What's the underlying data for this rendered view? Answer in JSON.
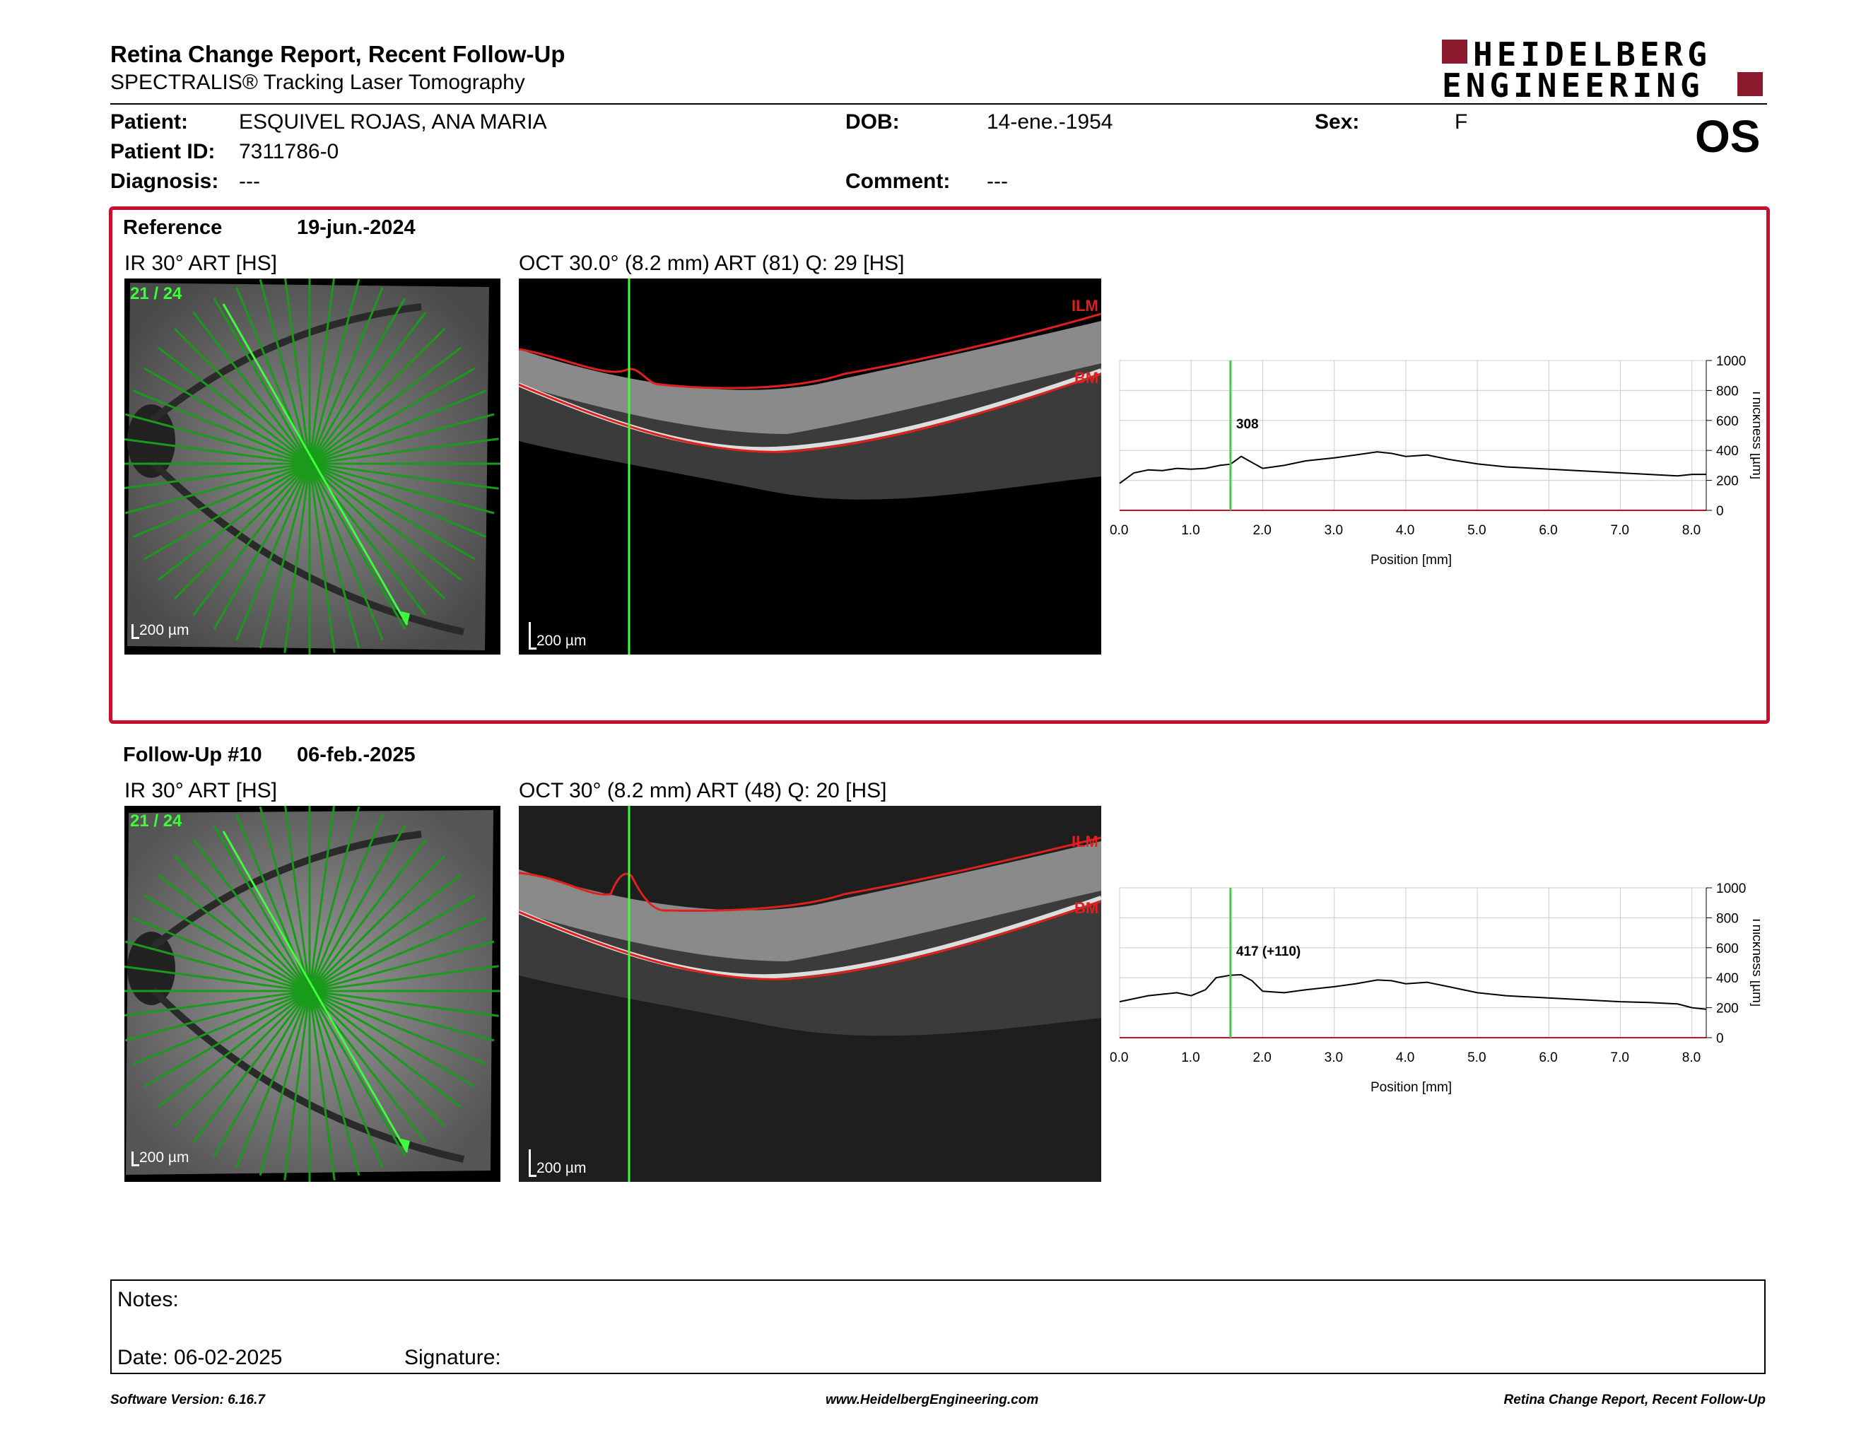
{
  "header": {
    "title": "Retina Change Report, Recent Follow-Up",
    "subtitle": "SPECTRALIS® Tracking Laser Tomography",
    "logo_line1": "HEIDELBERG",
    "logo_line2": "ENGINEERING",
    "eye": "OS"
  },
  "patient": {
    "patient_label": "Patient:",
    "patient_value": "ESQUIVEL ROJAS, ANA MARIA",
    "id_label": "Patient ID:",
    "id_value": "7311786-0",
    "diagnosis_label": "Diagnosis:",
    "diagnosis_value": "---",
    "dob_label": "DOB:",
    "dob_value": "14-ene.-1954",
    "comment_label": "Comment:",
    "comment_value": "---",
    "sex_label": "Sex:",
    "sex_value": "F"
  },
  "reference": {
    "label": "Reference",
    "date": "19-jun.-2024",
    "ir_caption": "IR 30° ART [HS]",
    "oct_caption": "OCT 30.0° (8.2 mm) ART (81) Q: 29 [HS]",
    "scan_index": "21 / 24",
    "scale_label": "200 µm",
    "ilm_label": "ILM",
    "bm_label": "BM",
    "marker_value": "308"
  },
  "followup": {
    "label": "Follow-Up #10",
    "date": "06-feb.-2025",
    "ir_caption": "IR 30° ART [HS]",
    "oct_caption": "OCT 30° (8.2 mm) ART (48) Q: 20 [HS]",
    "scan_index": "21 / 24",
    "scale_label": "200 µm",
    "ilm_label": "ILM",
    "bm_label": "BM",
    "marker_value": "417 (+110)"
  },
  "chart_data": [
    {
      "type": "line",
      "xlabel": "Position [mm]",
      "ylabel": "Thickness [µm]",
      "xlim": [
        0,
        8.2
      ],
      "ylim": [
        0,
        1000
      ],
      "x_ticks": [
        "0.0",
        "1.0",
        "2.0",
        "3.0",
        "4.0",
        "5.0",
        "6.0",
        "7.0",
        "8.0"
      ],
      "y_ticks": [
        "0",
        "200",
        "400",
        "600",
        "800",
        "1000"
      ],
      "marker_x": 1.55,
      "series": [
        {
          "x": [
            0.0,
            0.2,
            0.4,
            0.6,
            0.8,
            1.0,
            1.2,
            1.4,
            1.55,
            1.7,
            1.85,
            2.0,
            2.3,
            2.6,
            3.0,
            3.3,
            3.6,
            3.8,
            4.0,
            4.3,
            4.6,
            5.0,
            5.4,
            5.8,
            6.2,
            6.6,
            7.0,
            7.4,
            7.8,
            8.0,
            8.2
          ],
          "values": [
            180,
            250,
            270,
            265,
            280,
            275,
            280,
            300,
            308,
            360,
            320,
            280,
            300,
            330,
            350,
            370,
            390,
            380,
            360,
            370,
            340,
            310,
            290,
            280,
            270,
            260,
            250,
            240,
            230,
            240,
            240
          ]
        }
      ]
    },
    {
      "type": "line",
      "xlabel": "Position [mm]",
      "ylabel": "Thickness [µm]",
      "xlim": [
        0,
        8.2
      ],
      "ylim": [
        0,
        1000
      ],
      "x_ticks": [
        "0.0",
        "1.0",
        "2.0",
        "3.0",
        "4.0",
        "5.0",
        "6.0",
        "7.0",
        "8.0"
      ],
      "y_ticks": [
        "0",
        "200",
        "400",
        "600",
        "800",
        "1000"
      ],
      "marker_x": 1.55,
      "series": [
        {
          "x": [
            0.0,
            0.2,
            0.4,
            0.6,
            0.8,
            1.0,
            1.2,
            1.35,
            1.55,
            1.7,
            1.85,
            2.0,
            2.3,
            2.6,
            3.0,
            3.3,
            3.6,
            3.8,
            4.0,
            4.3,
            4.6,
            5.0,
            5.4,
            5.8,
            6.2,
            6.6,
            7.0,
            7.4,
            7.8,
            8.0,
            8.2
          ],
          "values": [
            240,
            260,
            280,
            290,
            300,
            280,
            320,
            400,
            417,
            420,
            380,
            310,
            300,
            320,
            340,
            360,
            385,
            380,
            360,
            370,
            340,
            300,
            280,
            270,
            260,
            250,
            240,
            235,
            225,
            200,
            190
          ]
        }
      ]
    }
  ],
  "notes": {
    "notes_label": "Notes:",
    "date_label": "Date: 06-02-2025",
    "signature_label": "Signature:"
  },
  "footer": {
    "left": "Software Version: 6.16.7",
    "center": "www.HeidelbergEngineering.com",
    "right": "Retina Change Report, Recent Follow-Up"
  }
}
